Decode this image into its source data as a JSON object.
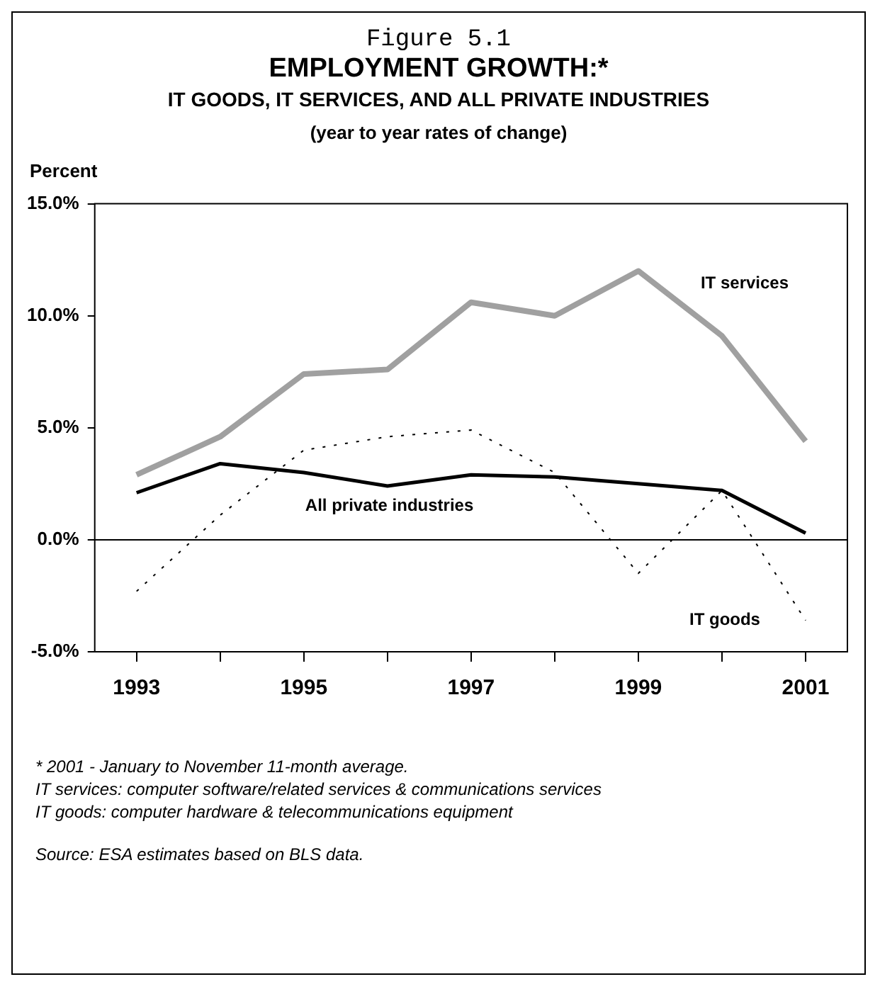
{
  "chart_data": {
    "type": "line",
    "title": "EMPLOYMENT GROWTH:*",
    "subtitle": "IT GOODS, IT SERVICES, AND ALL PRIVATE INDUSTRIES",
    "ylabel": "Percent",
    "annotations": [
      "Figure 5.1",
      "(year to year rates of change)",
      "* 2001 -  January to November 11-month average.",
      "IT services: computer software/related services & communications services",
      "IT goods: computer hardware & telecommunications equipment",
      "Source:  ESA estimates based on BLS data."
    ],
    "categories": [
      "1993",
      null,
      "1995",
      null,
      "1997",
      null,
      "1999",
      null,
      "2001"
    ],
    "series": [
      {
        "name": "IT services",
        "color": "#a0a0a0",
        "line_style": "solid",
        "values": [
          2.9,
          4.6,
          7.4,
          7.6,
          10.6,
          10.0,
          12.0,
          9.1,
          4.4
        ]
      },
      {
        "name": "All private industries",
        "color": "#000000",
        "line_style": "solid",
        "values": [
          2.1,
          3.4,
          3.0,
          2.4,
          2.9,
          2.8,
          2.5,
          2.2,
          0.3
        ]
      },
      {
        "name": "IT goods",
        "color": "#000000",
        "line_style": "dotted",
        "values": [
          -2.3,
          1.1,
          4.0,
          4.6,
          4.9,
          3.0,
          -1.5,
          2.2,
          -3.6
        ]
      }
    ],
    "ylim": [
      -5,
      15
    ],
    "yticks": [
      {
        "value": -5,
        "label": "-5.0%"
      },
      {
        "value": 0,
        "label": "0.0%"
      },
      {
        "value": 5,
        "label": "5.0%"
      },
      {
        "value": 10,
        "label": "10.0%"
      },
      {
        "value": 15,
        "label": "15.0%"
      }
    ],
    "ref_lines": [
      {
        "axis": "y",
        "value": 0,
        "color": "#000000"
      }
    ],
    "grid": false,
    "legend": false,
    "marker": "none"
  }
}
